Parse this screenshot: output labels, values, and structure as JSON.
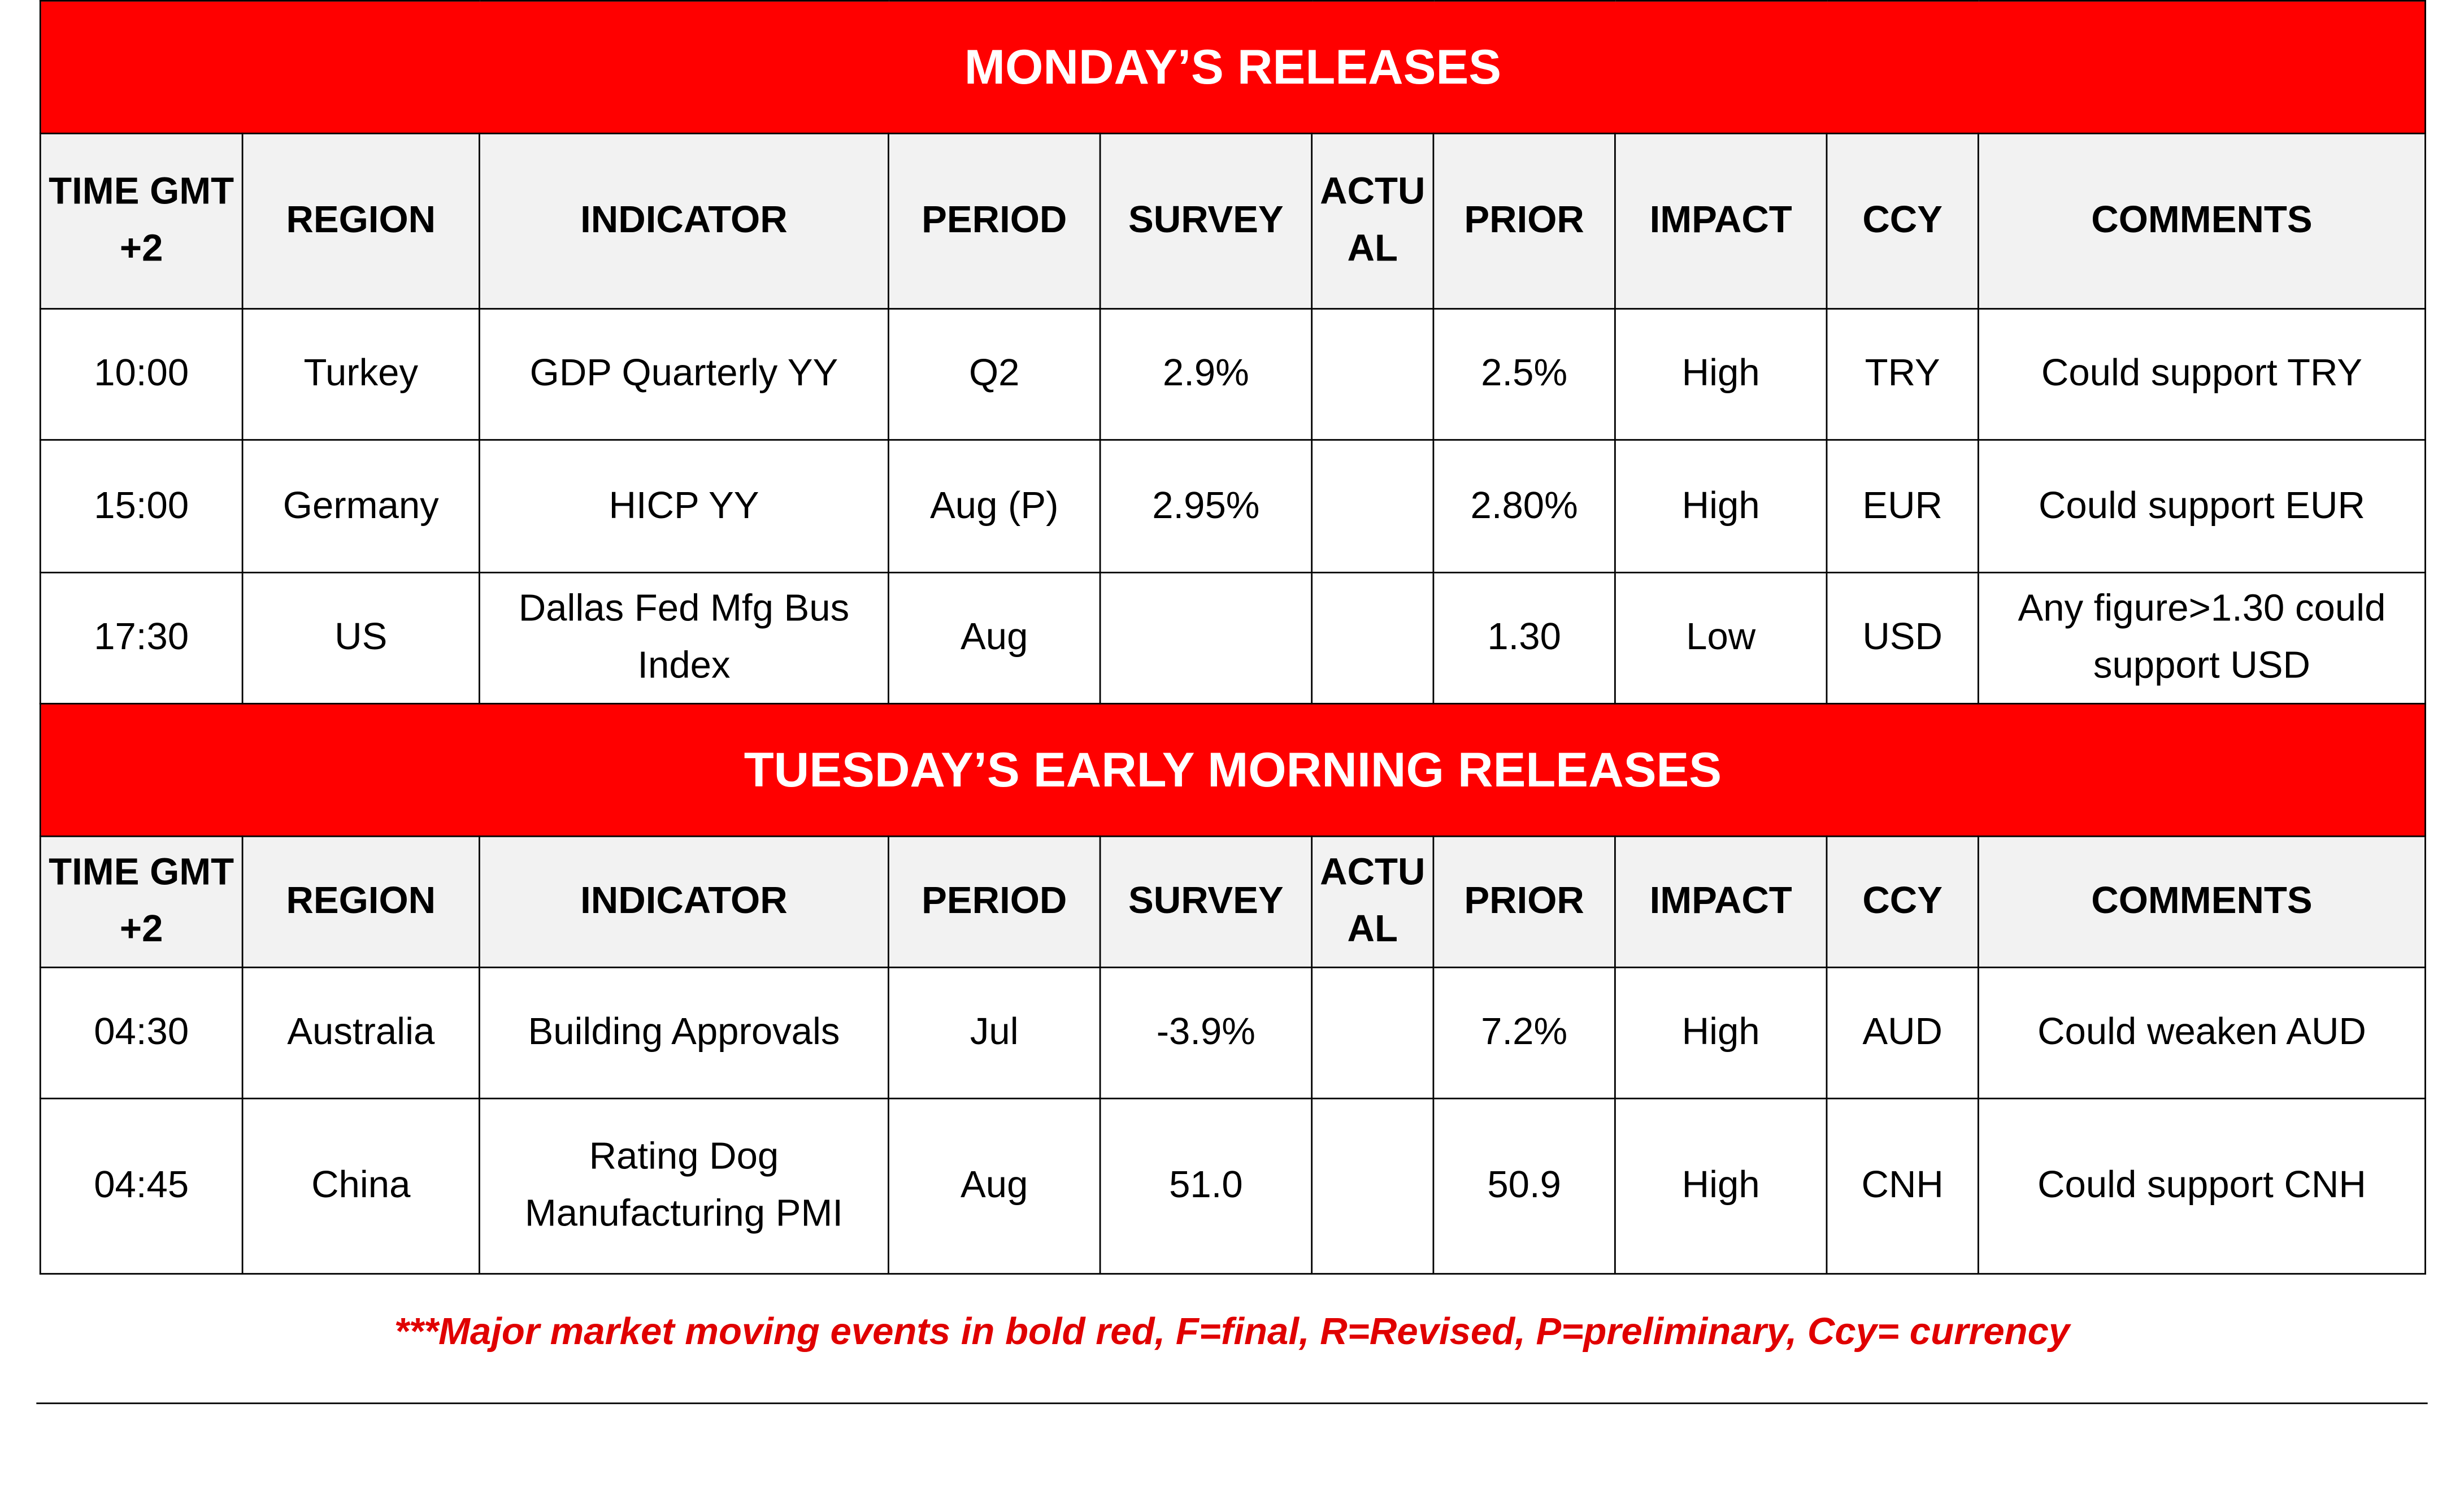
{
  "sections": [
    {
      "title": "MONDAY’S RELEASES",
      "columns": [
        "TIME GMT+2",
        "REGION",
        "INDICATOR",
        "PERIOD",
        "SURVEY",
        "ACTUAL",
        "PRIOR",
        "IMPACT",
        "CCY",
        "COMMENTS"
      ],
      "rows": [
        [
          "10:00",
          "Turkey",
          "GDP Quarterly YY",
          "Q2",
          "2.9%",
          null,
          "2.5%",
          "High",
          "TRY",
          "Could support TRY"
        ],
        [
          "15:00",
          "Germany",
          "HICP YY",
          "Aug (P)",
          "2.95%",
          null,
          "2.80%",
          "High",
          "EUR",
          "Could support EUR"
        ],
        [
          "17:30",
          "US",
          "Dallas Fed Mfg Bus Index",
          "Aug",
          null,
          null,
          "1.30",
          "Low",
          "USD",
          "Any figure>1.30 could support USD"
        ]
      ]
    },
    {
      "title": "TUESDAY’S EARLY MORNING RELEASES",
      "columns": [
        "TIME GMT+2",
        "REGION",
        "INDICATOR",
        "PERIOD",
        "SURVEY",
        "ACTUAL",
        "PRIOR",
        "IMPACT",
        "CCY",
        "COMMENTS"
      ],
      "rows": [
        [
          "04:30",
          "Australia",
          "Building Approvals",
          "Jul",
          "-3.9%",
          null,
          "7.2%",
          "High",
          "AUD",
          "Could weaken AUD"
        ],
        [
          "04:45",
          "China",
          "Rating Dog Manufacturing PMI",
          "Aug",
          "51.0",
          null,
          "50.9",
          "High",
          "CNH",
          "Could support CNH"
        ]
      ]
    }
  ],
  "footnote": "***Major market moving events in bold red, F=final, R=Revised, P=preliminary, Ccy= currency"
}
